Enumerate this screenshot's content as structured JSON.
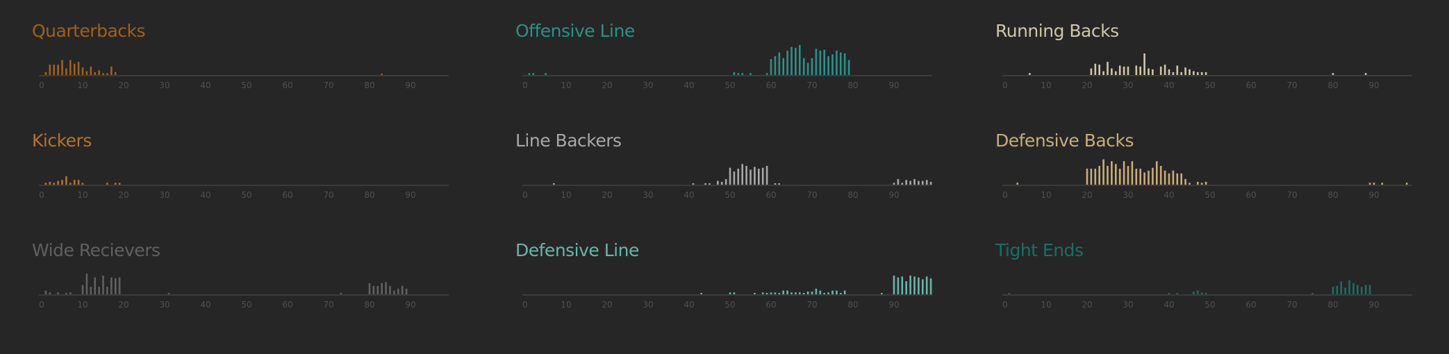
{
  "chart_data": [
    {
      "type": "bar",
      "title": "Quarterbacks",
      "color": "#a0601e",
      "xlabel": "",
      "ylabel": "",
      "xlim": [
        0,
        99
      ],
      "xticks": [
        0,
        10,
        20,
        30,
        40,
        50,
        60,
        70,
        80,
        90
      ],
      "grid": false,
      "bars": {
        "1": 3,
        "2": 11,
        "3": 11,
        "4": 11,
        "5": 16,
        "6": 7,
        "7": 16,
        "8": 12,
        "9": 14,
        "10": 8,
        "11": 4,
        "12": 9,
        "13": 3,
        "14": 5,
        "15": 2,
        "16": 2,
        "17": 9,
        "18": 3,
        "83": 1
      }
    },
    {
      "type": "bar",
      "title": "Offensive Line",
      "color": "#2e8f8a",
      "xlabel": "",
      "ylabel": "",
      "xlim": [
        0,
        99
      ],
      "xticks": [
        0,
        10,
        20,
        30,
        40,
        50,
        60,
        70,
        80,
        90
      ],
      "grid": false,
      "bars": {
        "1": 2,
        "2": 2,
        "5": 2,
        "51": 3,
        "52": 2,
        "53": 2,
        "55": 2,
        "59": 2,
        "60": 17,
        "61": 20,
        "62": 24,
        "63": 18,
        "64": 26,
        "65": 30,
        "66": 29,
        "67": 32,
        "68": 18,
        "69": 13,
        "70": 18,
        "71": 28,
        "72": 26,
        "73": 27,
        "74": 20,
        "75": 22,
        "76": 26,
        "77": 24,
        "78": 23,
        "79": 16
      }
    },
    {
      "type": "bar",
      "title": "Running Backs",
      "color": "#cfc7a7",
      "xlabel": "",
      "ylabel": "",
      "xlim": [
        0,
        99
      ],
      "xticks": [
        0,
        10,
        20,
        30,
        40,
        50,
        60,
        70,
        80,
        90
      ],
      "grid": false,
      "bars": {
        "6": 2,
        "21": 7,
        "22": 12,
        "23": 11,
        "24": 4,
        "25": 14,
        "26": 7,
        "27": 4,
        "28": 10,
        "29": 9,
        "30": 9,
        "32": 10,
        "33": 9,
        "34": 23,
        "35": 7,
        "36": 6,
        "38": 9,
        "39": 11,
        "40": 6,
        "41": 3,
        "42": 10,
        "43": 3,
        "44": 8,
        "45": 6,
        "46": 4,
        "47": 3,
        "48": 3,
        "49": 3,
        "80": 2,
        "88": 2
      }
    },
    {
      "type": "bar",
      "title": "Kickers",
      "color": "#b8722a",
      "xlabel": "",
      "ylabel": "",
      "xlim": [
        0,
        99
      ],
      "xticks": [
        0,
        10,
        20,
        30,
        40,
        50,
        60,
        70,
        80,
        90
      ],
      "grid": false,
      "bars": {
        "1": 2,
        "2": 3,
        "3": 2,
        "4": 4,
        "5": 5,
        "6": 9,
        "7": 2,
        "8": 5,
        "9": 5,
        "10": 2,
        "16": 2,
        "18": 2,
        "19": 2
      }
    },
    {
      "type": "bar",
      "title": "Line Backers",
      "color": "#a8a8a8",
      "xlabel": "",
      "ylabel": "",
      "xlim": [
        0,
        99
      ],
      "xticks": [
        0,
        10,
        20,
        30,
        40,
        50,
        60,
        70,
        80,
        90
      ],
      "grid": false,
      "bars": {
        "7": 1,
        "41": 1,
        "44": 1,
        "45": 1,
        "47": 4,
        "48": 3,
        "49": 6,
        "50": 18,
        "51": 14,
        "52": 17,
        "53": 22,
        "54": 20,
        "55": 16,
        "56": 19,
        "57": 17,
        "58": 18,
        "59": 20,
        "61": 1,
        "62": 1,
        "90": 2,
        "91": 6,
        "92": 2,
        "93": 5,
        "94": 4,
        "95": 6,
        "96": 4,
        "97": 4,
        "98": 5,
        "99": 3
      }
    },
    {
      "type": "bar",
      "title": "Defensive Backs",
      "color": "#c9ad7a",
      "xlabel": "",
      "ylabel": "",
      "xlim": [
        0,
        99
      ],
      "xticks": [
        0,
        10,
        20,
        30,
        40,
        50,
        60,
        70,
        80,
        90
      ],
      "grid": false,
      "bars": {
        "3": 2,
        "20": 17,
        "21": 17,
        "22": 17,
        "23": 20,
        "24": 27,
        "25": 20,
        "26": 25,
        "27": 22,
        "28": 17,
        "29": 25,
        "30": 20,
        "31": 25,
        "32": 17,
        "33": 17,
        "34": 13,
        "35": 15,
        "36": 18,
        "37": 25,
        "38": 20,
        "39": 15,
        "40": 12,
        "41": 15,
        "42": 12,
        "43": 12,
        "44": 6,
        "45": 2,
        "47": 3,
        "48": 2,
        "49": 3,
        "89": 2,
        "90": 2,
        "92": 2,
        "98": 2
      }
    },
    {
      "type": "bar",
      "title": "Wide Recievers",
      "color": "#606060",
      "xlabel": "",
      "ylabel": "",
      "xlim": [
        0,
        99
      ],
      "xticks": [
        0,
        10,
        20,
        30,
        40,
        50,
        60,
        70,
        80,
        90
      ],
      "grid": false,
      "bars": {
        "1": 4,
        "2": 2,
        "4": 2,
        "6": 1,
        "7": 2,
        "10": 10,
        "11": 22,
        "12": 8,
        "13": 18,
        "14": 8,
        "15": 20,
        "16": 8,
        "17": 18,
        "18": 17,
        "19": 18,
        "31": 1,
        "73": 1,
        "80": 12,
        "81": 9,
        "82": 9,
        "83": 12,
        "84": 13,
        "85": 9,
        "86": 4,
        "87": 6,
        "88": 9,
        "89": 6
      }
    },
    {
      "type": "bar",
      "title": "Defensive Line",
      "color": "#6ab5ac",
      "xlabel": "",
      "ylabel": "",
      "xlim": [
        0,
        99
      ],
      "xticks": [
        0,
        10,
        20,
        30,
        40,
        50,
        60,
        70,
        80,
        90
      ],
      "grid": false,
      "bars": {
        "43": 1,
        "50": 2,
        "51": 2,
        "56": 1,
        "58": 2,
        "59": 1,
        "60": 2,
        "61": 2,
        "62": 1,
        "63": 4,
        "64": 4,
        "65": 2,
        "66": 2,
        "67": 2,
        "68": 1,
        "69": 3,
        "70": 3,
        "71": 6,
        "72": 4,
        "73": 1,
        "74": 2,
        "75": 4,
        "76": 4,
        "77": 1,
        "78": 4,
        "87": 1,
        "90": 20,
        "91": 18,
        "92": 19,
        "93": 14,
        "94": 20,
        "95": 19,
        "96": 18,
        "97": 16,
        "98": 19,
        "99": 17
      }
    },
    {
      "type": "bar",
      "title": "Tight Ends",
      "color": "#1a6f66",
      "xlabel": "",
      "ylabel": "",
      "xlim": [
        0,
        99
      ],
      "xticks": [
        0,
        10,
        20,
        30,
        40,
        50,
        60,
        70,
        80,
        90
      ],
      "grid": false,
      "bars": {
        "1": 1,
        "40": 1,
        "42": 1,
        "46": 3,
        "47": 4,
        "48": 2,
        "49": 1,
        "75": 1,
        "80": 8,
        "81": 9,
        "82": 14,
        "83": 7,
        "84": 15,
        "85": 12,
        "86": 10,
        "87": 8,
        "88": 10,
        "89": 10
      }
    }
  ],
  "layout": {
    "background": "#262626",
    "axis_color": "#3b3b3b",
    "tick_label_color": "#505050",
    "panels": [
      {
        "title": "Quarterbacks",
        "color": "#a0601e"
      },
      {
        "title": "Offensive Line",
        "color": "#2e8f8a"
      },
      {
        "title": "Running Backs",
        "color": "#cfc7a7"
      },
      {
        "title": "Kickers",
        "color": "#b8722a"
      },
      {
        "title": "Line Backers",
        "color": "#a8a8a8"
      },
      {
        "title": "Defensive Backs",
        "color": "#c9ad7a"
      },
      {
        "title": "Wide Recievers",
        "color": "#606060"
      },
      {
        "title": "Defensive Line",
        "color": "#6ab5ac"
      },
      {
        "title": "Tight Ends",
        "color": "#1a6f66"
      }
    ]
  }
}
